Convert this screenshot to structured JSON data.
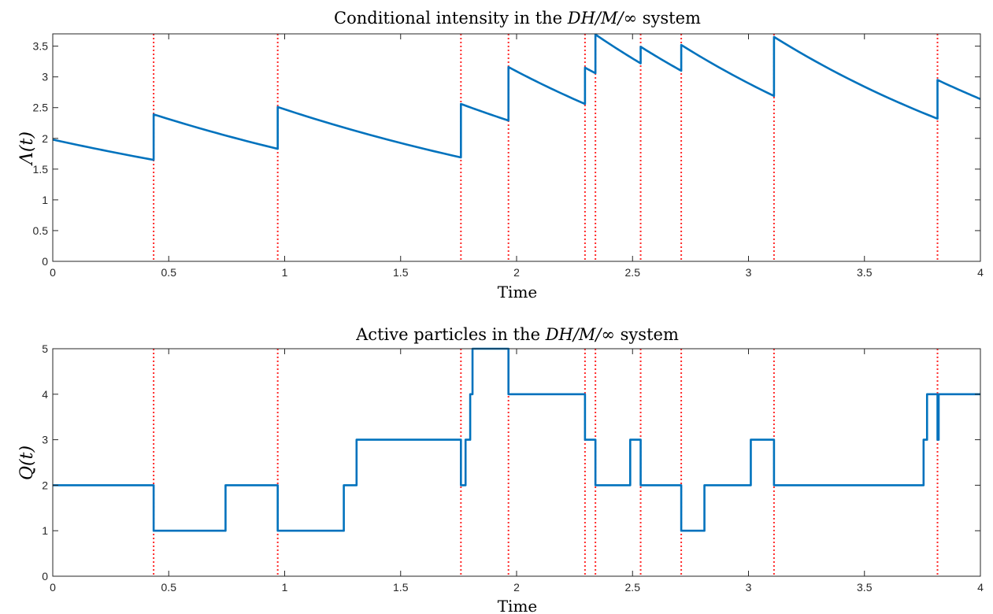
{
  "chart_data": [
    {
      "type": "line",
      "title": "Conditional intensity in the DH/M/∞ system",
      "title_parts": [
        "Conditional intensity in the ",
        "DH/M/∞",
        " system"
      ],
      "xlabel": "Time",
      "ylabel": "Λ(t)",
      "xlim": [
        0,
        4
      ],
      "ylim": [
        0,
        3.7
      ],
      "xticks": [
        0,
        0.5,
        1,
        1.5,
        2,
        2.5,
        3,
        3.5,
        4
      ],
      "xtick_labels": [
        "0",
        "0.5",
        "1",
        "1.5",
        "2",
        "2.5",
        "3",
        "3.5",
        "4"
      ],
      "yticks": [
        0,
        0.5,
        1,
        1.5,
        2,
        2.5,
        3,
        3.5
      ],
      "ytick_labels": [
        "0",
        "0.5",
        "1",
        "1.5",
        "2",
        "2.5",
        "3",
        "3.5"
      ],
      "grid": false,
      "series_color": "#0072BD",
      "event_color": "#ff2a2a",
      "event_times": [
        0.435,
        0.97,
        1.76,
        1.965,
        2.295,
        2.34,
        2.535,
        2.71,
        3.11,
        3.815
      ],
      "series": [
        {
          "x": [
            0,
            0.435,
            0.435,
            0.97,
            0.97,
            1.76,
            1.76,
            1.965,
            1.965,
            2.295,
            2.295,
            2.34,
            2.34,
            2.535,
            2.535,
            2.71,
            2.71,
            3.11,
            3.11,
            3.815,
            3.815,
            4.0
          ],
          "y": [
            1.98,
            1.65,
            2.39,
            1.83,
            2.51,
            1.69,
            2.56,
            2.29,
            3.16,
            2.56,
            3.15,
            3.06,
            3.69,
            3.22,
            3.49,
            3.1,
            3.52,
            2.69,
            3.65,
            2.32,
            2.95,
            2.64
          ]
        }
      ]
    },
    {
      "type": "line",
      "title": "Active particles in the DH/M/∞ system",
      "title_parts": [
        "Active particles in the ",
        "DH/M/∞",
        " system"
      ],
      "xlabel": "Time",
      "ylabel": "Q(t)",
      "xlim": [
        0,
        4
      ],
      "ylim": [
        0,
        5
      ],
      "xticks": [
        0,
        0.5,
        1,
        1.5,
        2,
        2.5,
        3,
        3.5,
        4
      ],
      "xtick_labels": [
        "0",
        "0.5",
        "1",
        "1.5",
        "2",
        "2.5",
        "3",
        "3.5",
        "4"
      ],
      "yticks": [
        0,
        1,
        2,
        3,
        4,
        5
      ],
      "ytick_labels": [
        "0",
        "1",
        "2",
        "3",
        "4",
        "5"
      ],
      "grid": false,
      "series_color": "#0072BD",
      "event_color": "#ff2a2a",
      "event_times": [
        0.435,
        0.97,
        1.76,
        1.965,
        2.295,
        2.34,
        2.535,
        2.71,
        3.11,
        3.815
      ],
      "series": [
        {
          "step": true,
          "x": [
            0,
            0.435,
            0.745,
            0.97,
            1.255,
            1.31,
            1.76,
            1.78,
            1.8,
            1.81,
            1.965,
            2.295,
            2.34,
            2.49,
            2.535,
            2.71,
            2.81,
            3.01,
            3.11,
            3.755,
            3.77,
            3.815,
            3.82,
            4.0
          ],
          "y": [
            2,
            1,
            2,
            1,
            2,
            3,
            2,
            3,
            4,
            5,
            4,
            3,
            2,
            3,
            2,
            1,
            2,
            3,
            2,
            3,
            4,
            3,
            4,
            4
          ]
        }
      ]
    }
  ]
}
